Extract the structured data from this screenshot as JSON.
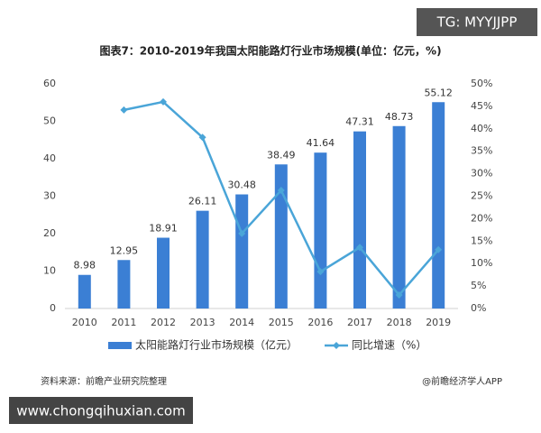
{
  "chart_data": {
    "type": "bar-line",
    "title": "图表7：2010-2019年我国太阳能路灯行业市场规模(单位：亿元，%)",
    "categories": [
      "2010",
      "2011",
      "2012",
      "2013",
      "2014",
      "2015",
      "2016",
      "2017",
      "2018",
      "2019"
    ],
    "series": [
      {
        "name": "太阳能路灯行业市场规模（亿元）",
        "type": "bar",
        "color": "#3b7fd4",
        "values": [
          8.98,
          12.95,
          18.91,
          26.11,
          30.48,
          38.49,
          41.64,
          47.31,
          48.73,
          55.12
        ]
      },
      {
        "name": "同比增速（%）",
        "type": "line",
        "axis": "y2",
        "color": "#4aa5d8",
        "values": [
          null,
          44.2,
          46.0,
          38.1,
          16.7,
          26.3,
          8.2,
          13.6,
          3.0,
          13.1
        ]
      }
    ],
    "ylim": [
      0,
      60
    ],
    "yticks": [
      0,
      10,
      20,
      30,
      40,
      50,
      60
    ],
    "y2lim": [
      0,
      50
    ],
    "y2ticks": [
      {
        "value": 0,
        "label": "0%"
      },
      {
        "value": 5,
        "label": "5%"
      },
      {
        "value": 10,
        "label": "10%"
      },
      {
        "value": 15,
        "label": "15%"
      },
      {
        "value": 20,
        "label": "20%"
      },
      {
        "value": 25,
        "label": "25%"
      },
      {
        "value": 30,
        "label": "30%"
      },
      {
        "value": 35,
        "label": "35%"
      },
      {
        "value": 40,
        "label": "40%"
      },
      {
        "value": 45,
        "label": "45%"
      },
      {
        "value": 50,
        "label": "50%"
      }
    ],
    "grid": false,
    "legend": "bottom",
    "source": "资料来源：前瞻产业研究院整理",
    "credit": "@前瞻经济学人APP"
  },
  "overlays": {
    "top_tag": "TG: MYYJJPP",
    "bottom_tag": "www.chongqihuxian.com"
  }
}
